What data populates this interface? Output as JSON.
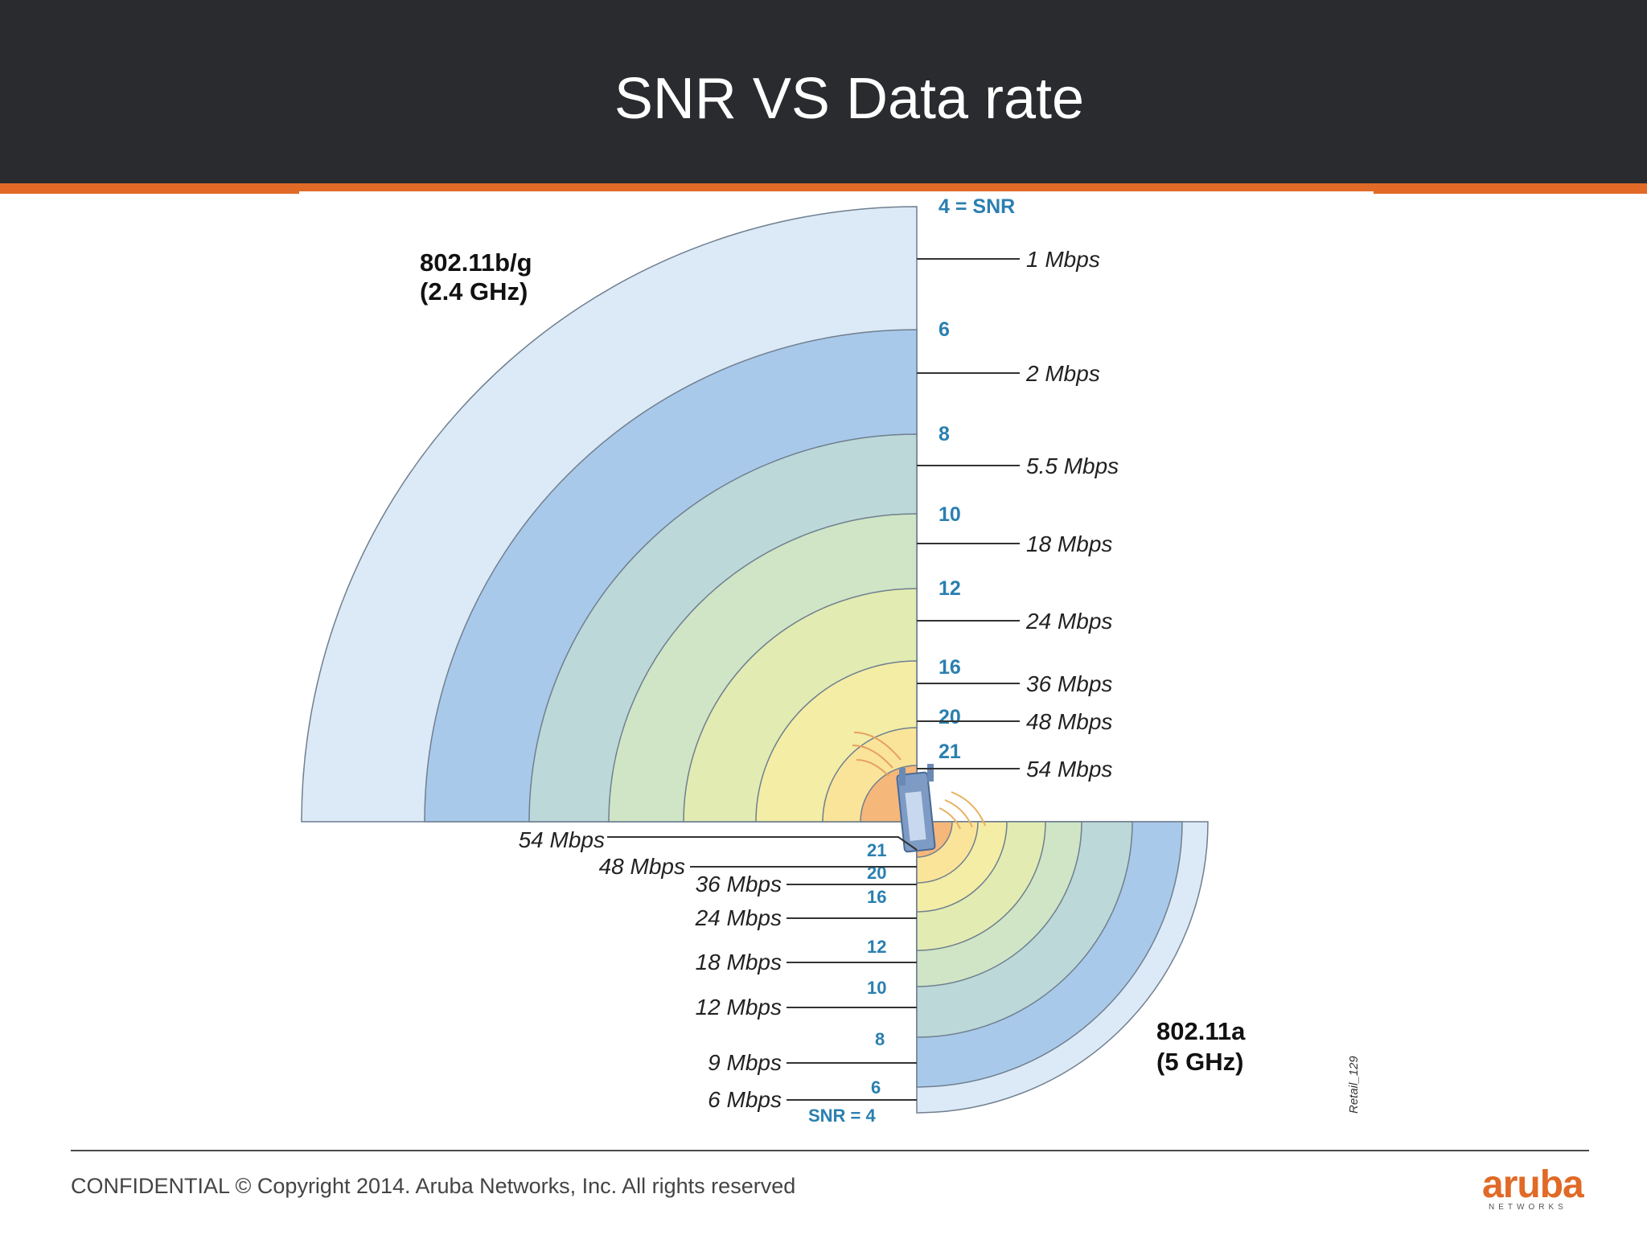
{
  "slide": {
    "title": "SNR VS Data rate",
    "footer": "CONFIDENTIAL © Copyright 2014. Aruba Networks, Inc. All rights reserved",
    "logo_word": "aruba",
    "logo_sub": "NETWORKS",
    "accent_color": "#e06a26",
    "header_color": "#2a2b2f"
  },
  "diagram": {
    "bg_band": {
      "line1": "802.11b/g",
      "line2": "(2.4 GHz)"
    },
    "a_band": {
      "line1": "802.11a",
      "line2": "(5 GHz)"
    },
    "watermark": "Retail_129",
    "bg_snr_labels": [
      "4 = SNR",
      "6",
      "8",
      "10",
      "12",
      "16",
      "20",
      "21"
    ],
    "bg_rates": [
      "1 Mbps",
      "2 Mbps",
      "5.5 Mbps",
      "18 Mbps",
      "24 Mbps",
      "36 Mbps",
      "48 Mbps",
      "54 Mbps"
    ],
    "a_snr_labels": [
      "21",
      "20",
      "16",
      "12",
      "10",
      "8",
      "6",
      "SNR = 4"
    ],
    "a_rates": [
      "54 Mbps",
      "48 Mbps",
      "36 Mbps",
      "24 Mbps",
      "18 Mbps",
      "12 Mbps",
      "9 Mbps",
      "6 Mbps"
    ],
    "ring_colors": [
      "#dce9f6",
      "#a9c9ea",
      "#bcd8d8",
      "#cfe5c6",
      "#e2ebb2",
      "#f3eda6",
      "#f9e49a",
      "#f6b77a"
    ]
  }
}
